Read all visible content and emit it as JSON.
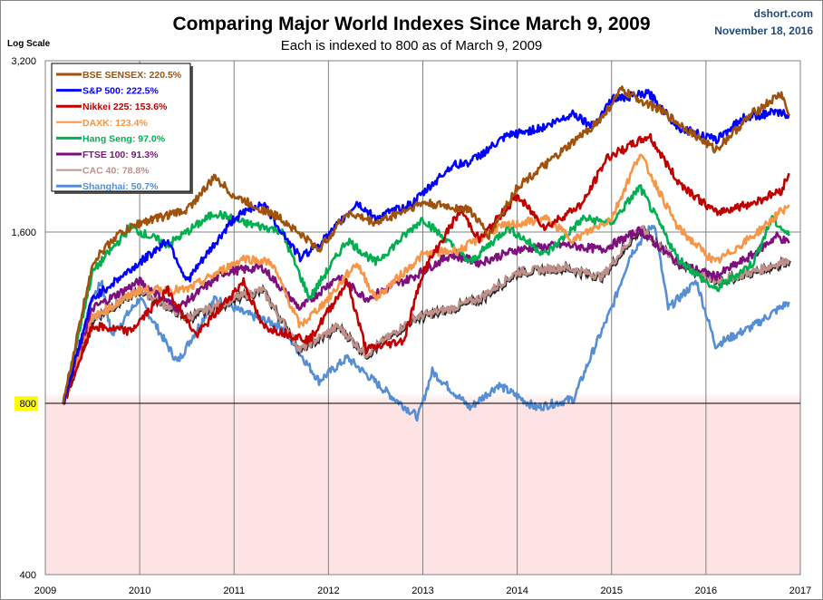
{
  "header": {
    "title": "Comparing Major World Indexes Since March 9, 2009",
    "subtitle": "Each is indexed to 800 as of March 9, 2009",
    "source": "dshort.com",
    "date": "November 18, 2016",
    "scale_label": "Log Scale"
  },
  "colors": {
    "below_base_fill": "#fde3e3",
    "base_label_bg": "#ffff00",
    "grid": "#808080"
  },
  "chart_data": {
    "type": "line",
    "title": "Comparing Major World Indexes Since March 9, 2009",
    "subtitle": "Each is indexed to 800 as of March 9, 2009",
    "ylabel": "Log Scale",
    "y_scale": "log2",
    "ylim": [
      400,
      3200
    ],
    "xlim": [
      2009,
      2017
    ],
    "y_ticks": [
      {
        "value": 3200,
        "label": "3,200"
      },
      {
        "value": 1600,
        "label": "1,600"
      },
      {
        "value": 800,
        "label": "800"
      },
      {
        "value": 400,
        "label": "400"
      }
    ],
    "x_ticks": [
      "2009",
      "2010",
      "2011",
      "2012",
      "2013",
      "2014",
      "2015",
      "2016",
      "2017"
    ],
    "grid": "vertical at years, horizontal at 1,600 and 800",
    "baseline": 800,
    "legend_position": "top-left",
    "series": [
      {
        "name": "BSE SENSEX",
        "legend": "BSE SENSEX: 220.5%",
        "color": "#a0520a",
        "points": [
          [
            2009.19,
            800
          ],
          [
            2009.5,
            1413
          ],
          [
            2009.75,
            1575
          ],
          [
            2010.0,
            1660
          ],
          [
            2010.5,
            1750
          ],
          [
            2010.8,
            2000
          ],
          [
            2011.0,
            1850
          ],
          [
            2011.5,
            1690
          ],
          [
            2011.9,
            1490
          ],
          [
            2012.2,
            1730
          ],
          [
            2012.5,
            1660
          ],
          [
            2013.0,
            1800
          ],
          [
            2013.5,
            1750
          ],
          [
            2013.7,
            1575
          ],
          [
            2014.0,
            1920
          ],
          [
            2014.5,
            2230
          ],
          [
            2014.9,
            2540
          ],
          [
            2015.1,
            2840
          ],
          [
            2015.5,
            2630
          ],
          [
            2015.9,
            2360
          ],
          [
            2016.1,
            2230
          ],
          [
            2016.5,
            2590
          ],
          [
            2016.8,
            2800
          ],
          [
            2016.88,
            2564
          ]
        ]
      },
      {
        "name": "S&P 500",
        "legend": "S&P 500: 222.5%",
        "color": "#0000ff",
        "points": [
          [
            2009.19,
            800
          ],
          [
            2009.5,
            1223
          ],
          [
            2010.0,
            1413
          ],
          [
            2010.3,
            1550
          ],
          [
            2010.5,
            1311
          ],
          [
            2011.0,
            1690
          ],
          [
            2011.3,
            1800
          ],
          [
            2011.7,
            1440
          ],
          [
            2012.0,
            1575
          ],
          [
            2012.3,
            1800
          ],
          [
            2012.5,
            1690
          ],
          [
            2012.9,
            1800
          ],
          [
            2013.3,
            2090
          ],
          [
            2013.5,
            2125
          ],
          [
            2013.9,
            2360
          ],
          [
            2014.3,
            2450
          ],
          [
            2014.6,
            2590
          ],
          [
            2014.8,
            2450
          ],
          [
            2015.0,
            2740
          ],
          [
            2015.4,
            2800
          ],
          [
            2015.7,
            2450
          ],
          [
            2016.1,
            2320
          ],
          [
            2016.4,
            2540
          ],
          [
            2016.7,
            2590
          ],
          [
            2016.88,
            2580
          ]
        ]
      },
      {
        "name": "Nikkei 225",
        "legend": "Nikkei 225: 153.6%",
        "color": "#c00000",
        "points": [
          [
            2009.19,
            800
          ],
          [
            2009.5,
            1093
          ],
          [
            2009.9,
            1070
          ],
          [
            2010.3,
            1266
          ],
          [
            2010.6,
            1052
          ],
          [
            2011.1,
            1311
          ],
          [
            2011.3,
            1093
          ],
          [
            2011.8,
            1033
          ],
          [
            2012.2,
            1311
          ],
          [
            2012.4,
            994
          ],
          [
            2012.8,
            1033
          ],
          [
            2013.0,
            1361
          ],
          [
            2013.4,
            1750
          ],
          [
            2013.6,
            1550
          ],
          [
            2014.0,
            1850
          ],
          [
            2014.3,
            1630
          ],
          [
            2014.7,
            1800
          ],
          [
            2014.95,
            2160
          ],
          [
            2015.4,
            2360
          ],
          [
            2015.7,
            1965
          ],
          [
            2016.1,
            1730
          ],
          [
            2016.5,
            1800
          ],
          [
            2016.8,
            1895
          ],
          [
            2016.88,
            2029
          ]
        ]
      },
      {
        "name": "DAXK",
        "legend": "DAXK: 123.4%",
        "color": "#f79646",
        "points": [
          [
            2009.19,
            800
          ],
          [
            2009.5,
            1130
          ],
          [
            2010.0,
            1266
          ],
          [
            2010.5,
            1266
          ],
          [
            2011.1,
            1440
          ],
          [
            2011.4,
            1413
          ],
          [
            2011.7,
            1093
          ],
          [
            2012.0,
            1223
          ],
          [
            2012.3,
            1413
          ],
          [
            2012.5,
            1223
          ],
          [
            2013.0,
            1460
          ],
          [
            2013.4,
            1490
          ],
          [
            2013.8,
            1630
          ],
          [
            2014.3,
            1690
          ],
          [
            2014.6,
            1550
          ],
          [
            2015.0,
            1690
          ],
          [
            2015.3,
            2200
          ],
          [
            2015.7,
            1630
          ],
          [
            2016.1,
            1413
          ],
          [
            2016.5,
            1575
          ],
          [
            2016.88,
            1787
          ]
        ]
      },
      {
        "name": "Hang Seng",
        "legend": "Hang Seng: 97.0%",
        "color": "#00b050",
        "points": [
          [
            2009.19,
            800
          ],
          [
            2009.5,
            1361
          ],
          [
            2009.9,
            1630
          ],
          [
            2010.3,
            1520
          ],
          [
            2010.8,
            1730
          ],
          [
            2011.1,
            1660
          ],
          [
            2011.5,
            1610
          ],
          [
            2011.8,
            1223
          ],
          [
            2012.2,
            1550
          ],
          [
            2012.5,
            1413
          ],
          [
            2013.0,
            1690
          ],
          [
            2013.5,
            1413
          ],
          [
            2013.9,
            1630
          ],
          [
            2014.3,
            1460
          ],
          [
            2014.7,
            1690
          ],
          [
            2015.0,
            1660
          ],
          [
            2015.3,
            1920
          ],
          [
            2015.7,
            1440
          ],
          [
            2016.1,
            1266
          ],
          [
            2016.5,
            1413
          ],
          [
            2016.7,
            1690
          ],
          [
            2016.88,
            1576
          ]
        ]
      },
      {
        "name": "FTSE 100",
        "legend": "FTSE 100: 91.3%",
        "color": "#7f0f7f",
        "points": [
          [
            2009.19,
            800
          ],
          [
            2009.5,
            1174
          ],
          [
            2010.0,
            1311
          ],
          [
            2010.4,
            1174
          ],
          [
            2010.9,
            1361
          ],
          [
            2011.3,
            1387
          ],
          [
            2011.7,
            1174
          ],
          [
            2012.1,
            1336
          ],
          [
            2012.4,
            1223
          ],
          [
            2012.9,
            1336
          ],
          [
            2013.3,
            1460
          ],
          [
            2013.6,
            1413
          ],
          [
            2014.0,
            1490
          ],
          [
            2014.5,
            1520
          ],
          [
            2014.9,
            1490
          ],
          [
            2015.3,
            1610
          ],
          [
            2015.7,
            1413
          ],
          [
            2016.1,
            1336
          ],
          [
            2016.5,
            1460
          ],
          [
            2016.75,
            1575
          ],
          [
            2016.88,
            1530
          ]
        ]
      },
      {
        "name": "CAC 40",
        "legend": "CAC 40: 78.8%",
        "color": "#c0908a",
        "points": [
          [
            2009.19,
            800
          ],
          [
            2009.5,
            1130
          ],
          [
            2010.0,
            1266
          ],
          [
            2010.5,
            1130
          ],
          [
            2011.0,
            1223
          ],
          [
            2011.3,
            1266
          ],
          [
            2011.7,
            994
          ],
          [
            2012.1,
            1093
          ],
          [
            2012.4,
            975
          ],
          [
            2012.9,
            1130
          ],
          [
            2013.3,
            1174
          ],
          [
            2013.6,
            1223
          ],
          [
            2014.0,
            1361
          ],
          [
            2014.5,
            1387
          ],
          [
            2014.9,
            1336
          ],
          [
            2015.3,
            1630
          ],
          [
            2015.7,
            1413
          ],
          [
            2016.1,
            1311
          ],
          [
            2016.5,
            1361
          ],
          [
            2016.88,
            1430
          ]
        ]
      },
      {
        "name": "Shanghai",
        "legend": "Shanghai: 50.7%",
        "color": "#558ed5",
        "points": [
          [
            2009.19,
            800
          ],
          [
            2009.5,
            1223
          ],
          [
            2009.6,
            1311
          ],
          [
            2009.7,
            1052
          ],
          [
            2010.0,
            1223
          ],
          [
            2010.4,
            945
          ],
          [
            2010.8,
            1223
          ],
          [
            2011.1,
            1153
          ],
          [
            2011.5,
            1093
          ],
          [
            2011.9,
            876
          ],
          [
            2012.2,
            962
          ],
          [
            2012.7,
            815
          ],
          [
            2012.95,
            757
          ],
          [
            2013.1,
            910
          ],
          [
            2013.5,
            786
          ],
          [
            2013.8,
            862
          ],
          [
            2014.2,
            786
          ],
          [
            2014.6,
            815
          ],
          [
            2014.8,
            985
          ],
          [
            2015.0,
            1174
          ],
          [
            2015.2,
            1460
          ],
          [
            2015.45,
            1660
          ],
          [
            2015.6,
            1174
          ],
          [
            2015.9,
            1311
          ],
          [
            2016.1,
            1013
          ],
          [
            2016.5,
            1093
          ],
          [
            2016.88,
            1206
          ]
        ]
      }
    ]
  }
}
